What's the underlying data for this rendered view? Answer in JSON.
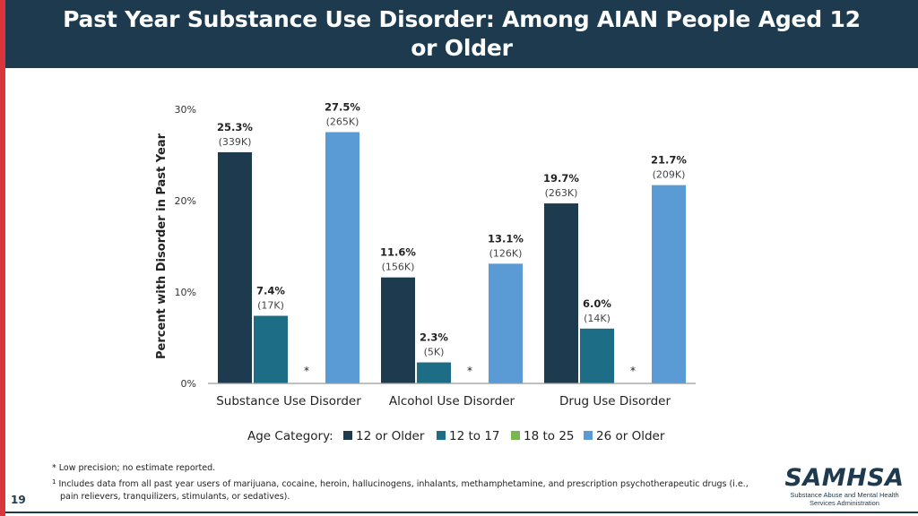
{
  "slide": {
    "title": "Past Year Substance Use Disorder: Among AIAN People Aged 12 or Older",
    "page_number": "19",
    "colors": {
      "header_bg": "#1d3a4f",
      "accent_bar": "#d8363a"
    }
  },
  "chart_data": {
    "type": "bar",
    "title": "",
    "ylabel": "Percent with Disorder in Past Year",
    "ylim": [
      0,
      30
    ],
    "yticks": [
      "0%",
      "10%",
      "20%",
      "30%"
    ],
    "grid": false,
    "categories": [
      "Substance Use Disorder",
      "Alcohol Use Disorder",
      "Drug Use Disorder"
    ],
    "legend": {
      "title": "Age Category:",
      "placement": "bottom"
    },
    "series": [
      {
        "name": "12 or Older",
        "color": "#1d3a4f",
        "values": [
          25.3,
          11.6,
          19.7
        ],
        "labels": [
          "25.3%",
          "11.6%",
          "19.7%"
        ],
        "counts": [
          "(339K)",
          "(156K)",
          "(263K)"
        ],
        "suppressed": [
          false,
          false,
          false
        ]
      },
      {
        "name": "12 to 17",
        "color": "#1d6d87",
        "values": [
          7.4,
          2.3,
          6.0
        ],
        "labels": [
          "7.4%",
          "2.3%",
          "6.0%"
        ],
        "counts": [
          "(17K)",
          "(5K)",
          "(14K)"
        ],
        "suppressed": [
          false,
          false,
          false
        ]
      },
      {
        "name": "18 to 25",
        "color": "#79b850",
        "values": [
          null,
          null,
          null
        ],
        "labels": [
          "*",
          "*",
          "*"
        ],
        "counts": [
          "",
          "",
          ""
        ],
        "suppressed": [
          true,
          true,
          true
        ]
      },
      {
        "name": "26 or Older",
        "color": "#5a9ad5",
        "values": [
          27.5,
          13.1,
          21.7
        ],
        "labels": [
          "27.5%",
          "13.1%",
          "21.7%"
        ],
        "counts": [
          "(265K)",
          "(126K)",
          "(209K)"
        ],
        "suppressed": [
          false,
          false,
          false
        ]
      }
    ]
  },
  "footnotes": {
    "note1": "* Low precision; no estimate reported.",
    "note2_marker": "1",
    "note2": "Includes data from all past year users of marijuana, cocaine, heroin, hallucinogens, inhalants, methamphetamine, and prescription psychotherapeutic drugs (i.e., pain relievers, tranquilizers, stimulants, or sedatives)."
  },
  "logo": {
    "name": "SAMHSA",
    "subtitle_line1": "Substance Abuse and Mental Health",
    "subtitle_line2": "Services Administration"
  }
}
